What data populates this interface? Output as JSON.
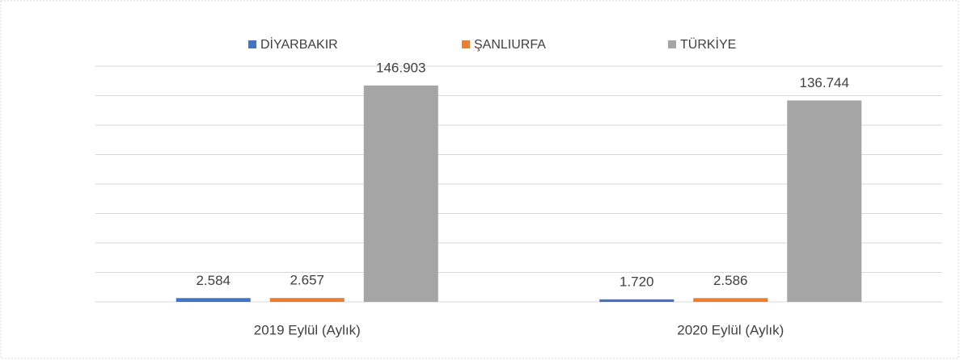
{
  "chart_data": {
    "type": "bar",
    "categories": [
      "2019 Eylül (Aylık)",
      "2020 Eylül (Aylık)"
    ],
    "series": [
      {
        "name": "DİYARBAKIR",
        "color": "#4472c4",
        "values": [
          2584,
          1720
        ],
        "value_labels": [
          "2.584",
          "1.720"
        ]
      },
      {
        "name": "ŞANLIURFA",
        "color": "#ed7d31",
        "values": [
          2657,
          2586
        ],
        "value_labels": [
          "2.657",
          "2.586"
        ]
      },
      {
        "name": "TÜRKİYE",
        "color": "#a5a5a5",
        "values": [
          146903,
          136744
        ],
        "value_labels": [
          "146.903",
          "136.744"
        ]
      }
    ],
    "ylim": [
      0,
      160000
    ],
    "yticks": [
      0,
      20000,
      40000,
      60000,
      80000,
      100000,
      120000,
      140000,
      160000
    ],
    "grid": true,
    "legend": "top"
  }
}
